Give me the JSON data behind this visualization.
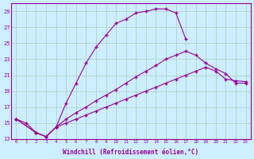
{
  "background_color": "#cceeff",
  "grid_color": "#aaccbb",
  "line_color": "#990099",
  "marker": "+",
  "xlabel": "Windchill (Refroidissement éolien,°C)",
  "xlim": [
    -0.5,
    23.5
  ],
  "ylim": [
    13,
    30
  ],
  "xticks": [
    0,
    1,
    2,
    3,
    4,
    5,
    6,
    7,
    8,
    9,
    10,
    11,
    12,
    13,
    14,
    15,
    16,
    17,
    18,
    19,
    20,
    21,
    22,
    23
  ],
  "yticks": [
    13,
    15,
    17,
    19,
    21,
    23,
    25,
    27,
    29
  ],
  "curve1_x": [
    0,
    1,
    2,
    3,
    4,
    5,
    6,
    7,
    8,
    9,
    10,
    11,
    12,
    13,
    14,
    15,
    16,
    17
  ],
  "curve1_y": [
    15.5,
    15.0,
    13.8,
    13.3,
    14.5,
    17.5,
    20.0,
    22.5,
    24.5,
    26.0,
    27.5,
    28.0,
    28.8,
    29.0,
    29.3,
    29.3,
    28.8,
    25.5
  ],
  "curve2_x": [
    0,
    2,
    3,
    4,
    5,
    6,
    7,
    8,
    9,
    10,
    11,
    12,
    13,
    14,
    15,
    16,
    17,
    18,
    19,
    20,
    21,
    22,
    23
  ],
  "curve2_y": [
    15.5,
    13.8,
    13.3,
    14.5,
    15.5,
    16.3,
    17.0,
    17.8,
    18.5,
    19.2,
    20.0,
    20.8,
    21.5,
    22.2,
    23.0,
    23.5,
    24.0,
    23.5,
    22.5,
    21.8,
    21.2,
    20.0,
    20.0
  ],
  "curve3_x": [
    0,
    2,
    3,
    4,
    5,
    6,
    7,
    8,
    9,
    10,
    11,
    12,
    13,
    14,
    15,
    16,
    17,
    18,
    19,
    20,
    21,
    22,
    23
  ],
  "curve3_y": [
    15.5,
    13.8,
    13.3,
    14.5,
    15.0,
    15.5,
    16.0,
    16.5,
    17.0,
    17.5,
    18.0,
    18.5,
    19.0,
    19.5,
    20.0,
    20.5,
    21.0,
    21.5,
    22.0,
    21.5,
    20.5,
    20.3,
    20.2
  ]
}
